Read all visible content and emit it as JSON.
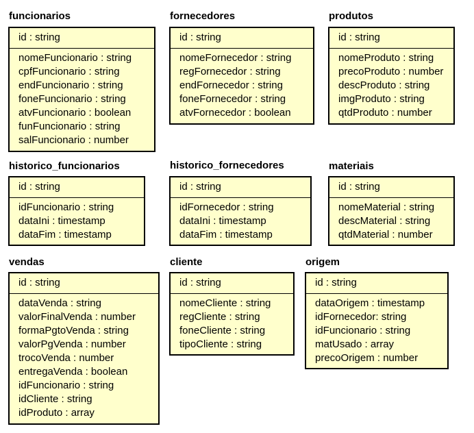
{
  "entities": [
    {
      "name": "funcionarios",
      "id": "id : string",
      "fields": [
        "nomeFuncionario : string",
        "cpfFuncionario : string",
        "endFuncionario : string",
        "foneFuncionario : string",
        "atvFuncionario : boolean",
        "funFuncionario : string",
        "salFuncionario : number"
      ]
    },
    {
      "name": "fornecedores",
      "id": "id : string",
      "fields": [
        "nomeFornecedor : string",
        "regFornecedor : string",
        "endFornecedor : string",
        "foneFornecedor : string",
        "atvFornecedor : boolean"
      ]
    },
    {
      "name": "produtos",
      "id": "id : string",
      "fields": [
        "nomeProduto : string",
        "precoProduto : number",
        "descProduto : string",
        "imgProduto : string",
        "qtdProduto : number"
      ]
    },
    {
      "name": "historico_funcionarios",
      "id": "id : string",
      "fields": [
        "idFuncionario : string",
        "dataIni : timestamp",
        "dataFim : timestamp"
      ]
    },
    {
      "name": "historico_fornecedores",
      "id": "id : string",
      "fields": [
        "idFornecedor : string",
        "dataIni : timestamp",
        "dataFim : timestamp"
      ]
    },
    {
      "name": "materiais",
      "id": "id : string",
      "fields": [
        "nomeMaterial : string",
        "descMaterial : string",
        "qtdMaterial : number"
      ]
    },
    {
      "name": "vendas",
      "id": "id : string",
      "fields": [
        "dataVenda : string",
        "valorFinalVenda : number",
        "formaPgtoVenda : string",
        "valorPgVenda : number",
        "trocoVenda : number",
        "entregaVenda : boolean",
        "idFuncionario : string",
        "idCliente : string",
        "idProduto : array"
      ]
    },
    {
      "name": "cliente",
      "id": "id : string",
      "fields": [
        "nomeCliente : string",
        "regCliente : string",
        "foneCliente : string",
        "tipoCliente : string"
      ]
    },
    {
      "name": "origem",
      "id": "id : string",
      "fields": [
        "dataOrigem : timestamp",
        "idFornecedor: string",
        "idFuncionario : string",
        "matUsado : array",
        "precoOrigem : number"
      ]
    }
  ]
}
